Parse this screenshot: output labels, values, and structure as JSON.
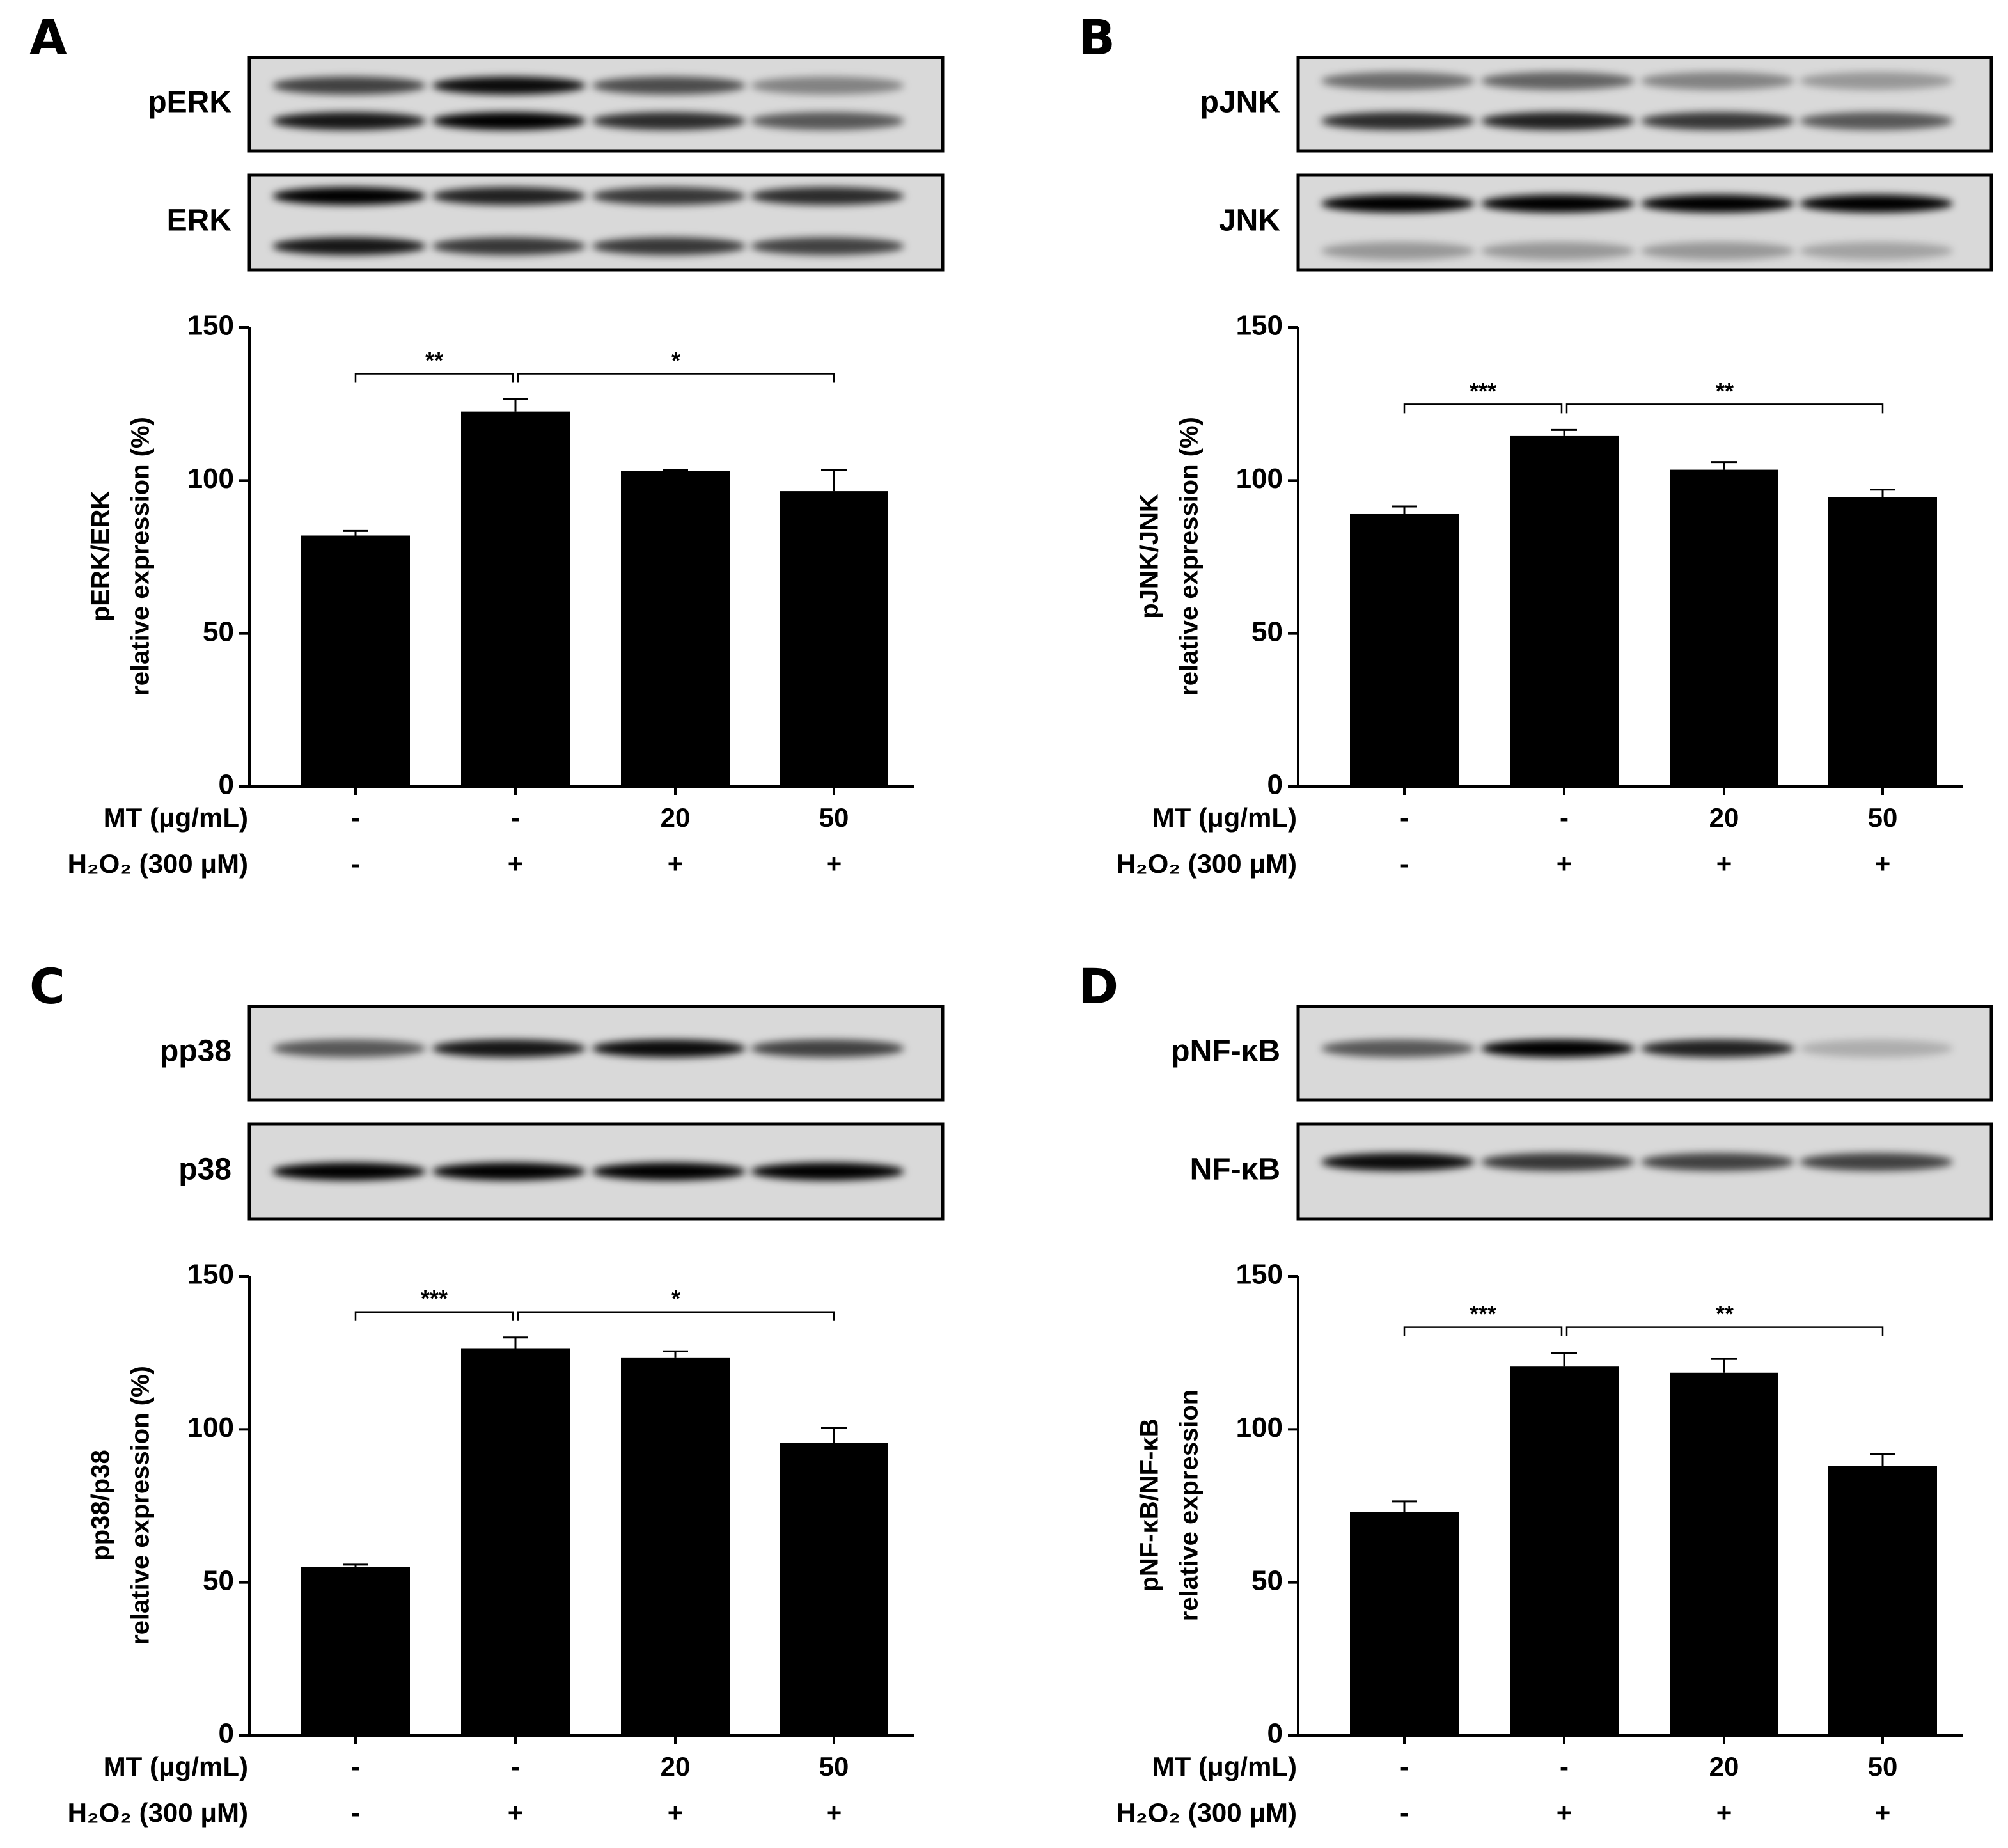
{
  "chart_data": [
    {
      "type": "bar",
      "panel": "A",
      "blots": [
        "pERK",
        "ERK"
      ],
      "ylabel": [
        "pERK/ERK",
        "relative expression (%)"
      ],
      "treatments": [
        {
          "label": "MT (μg/mL)",
          "levels": [
            "-",
            "-",
            "20",
            "50"
          ]
        },
        {
          "label": "H₂O₂ (300 μM)",
          "levels": [
            "-",
            "+",
            "+",
            "+"
          ]
        }
      ],
      "values": [
        82,
        122.5,
        103,
        96.5
      ],
      "errors": [
        1.5,
        4,
        0.5,
        7
      ],
      "color": "#000000",
      "ylim": [
        0,
        150
      ],
      "yticks": [
        0,
        50,
        100,
        150
      ],
      "significance": [
        {
          "label": "**",
          "between": [
            0,
            1
          ]
        },
        {
          "label": "*",
          "between": [
            1,
            3
          ]
        }
      ]
    },
    {
      "type": "bar",
      "panel": "B",
      "blots": [
        "pJNK",
        "JNK"
      ],
      "ylabel": [
        "pJNK/JNK",
        "relative expression (%)"
      ],
      "treatments": [
        {
          "label": "MT (μg/mL)",
          "levels": [
            "-",
            "-",
            "20",
            "50"
          ]
        },
        {
          "label": "H₂O₂ (300 μM)",
          "levels": [
            "-",
            "+",
            "+",
            "+"
          ]
        }
      ],
      "values": [
        89,
        114.5,
        103.5,
        94.5
      ],
      "errors": [
        2.5,
        2,
        2.5,
        2.5
      ],
      "color": "#000000",
      "ylim": [
        0,
        150
      ],
      "yticks": [
        0,
        50,
        100,
        150
      ],
      "significance": [
        {
          "label": "***",
          "between": [
            0,
            1
          ]
        },
        {
          "label": "**",
          "between": [
            1,
            3
          ]
        }
      ]
    },
    {
      "type": "bar",
      "panel": "C",
      "blots": [
        "pp38",
        "p38"
      ],
      "ylabel": [
        "pp38/p38",
        "relative expression (%)"
      ],
      "treatments": [
        {
          "label": "MT (μg/mL)",
          "levels": [
            "-",
            "-",
            "20",
            "50"
          ]
        },
        {
          "label": "H₂O₂ (300 μM)",
          "levels": [
            "-",
            "+",
            "+",
            "+"
          ]
        }
      ],
      "values": [
        55,
        126.5,
        123.5,
        95.5
      ],
      "errors": [
        0.8,
        3.5,
        2,
        5
      ],
      "color": "#000000",
      "ylim": [
        0,
        150
      ],
      "yticks": [
        0,
        50,
        100,
        150
      ],
      "significance": [
        {
          "label": "***",
          "between": [
            0,
            1
          ]
        },
        {
          "label": "*",
          "between": [
            1,
            3
          ]
        }
      ]
    },
    {
      "type": "bar",
      "panel": "D",
      "blots": [
        "pNF-κB",
        "NF-κB"
      ],
      "ylabel": [
        "pNF-κB/NF-κB",
        "relative  expression"
      ],
      "treatments": [
        {
          "label": "MT (μg/mL)",
          "levels": [
            "-",
            "-",
            "20",
            "50"
          ]
        },
        {
          "label": "H₂O₂ (300 μM)",
          "levels": [
            "-",
            "+",
            "+",
            "+"
          ]
        }
      ],
      "values": [
        73,
        120.5,
        118.5,
        88
      ],
      "errors": [
        3.5,
        4.5,
        4.5,
        4
      ],
      "color": "#000000",
      "ylim": [
        0,
        150
      ],
      "yticks": [
        0,
        50,
        100,
        150
      ],
      "significance": [
        {
          "label": "***",
          "between": [
            0,
            1
          ]
        },
        {
          "label": "**",
          "between": [
            1,
            3
          ]
        }
      ]
    }
  ]
}
